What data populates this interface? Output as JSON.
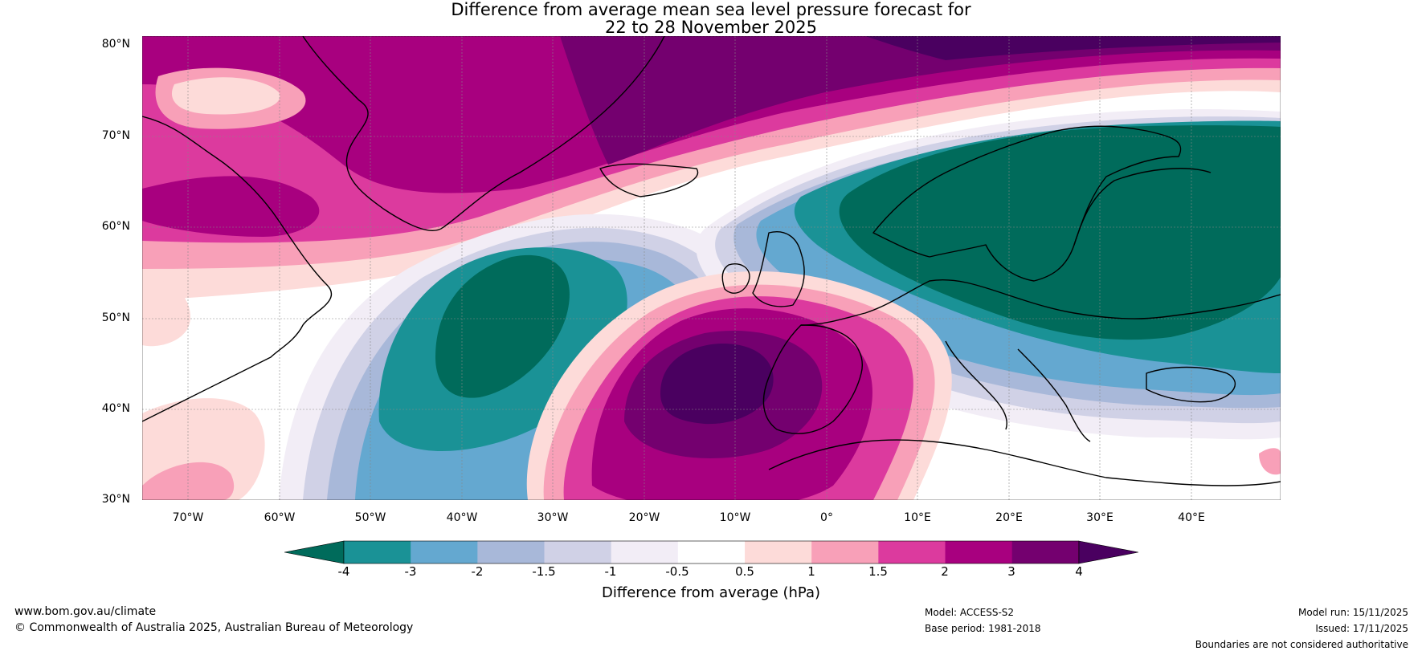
{
  "title": {
    "line1": "Difference from average mean sea level pressure forecast for",
    "line2": "22 to 28 November 2025"
  },
  "axes": {
    "lat_labels": [
      "80°N",
      "70°N",
      "60°N",
      "50°N",
      "40°N",
      "30°N"
    ],
    "lon_labels": [
      "70°W",
      "60°W",
      "50°W",
      "40°W",
      "30°W",
      "20°W",
      "10°W",
      "0°",
      "10°E",
      "20°E",
      "30°E",
      "40°E"
    ],
    "lat_range": [
      30,
      81
    ],
    "lon_range": [
      -75,
      50
    ]
  },
  "colorbar": {
    "title": "Difference from average (hPa)",
    "tick_labels": [
      "-4",
      "-3",
      "-2",
      "-1.5",
      "-1",
      "-0.5",
      "0.5",
      "1",
      "1.5",
      "2",
      "3",
      "4"
    ],
    "colors": [
      "#006b5b",
      "#1a9296",
      "#64a8d0",
      "#a8b8d9",
      "#d0d1e6",
      "#f2edf6",
      "#ffffff",
      "#fddbd9",
      "#f8a0b8",
      "#dc3a9e",
      "#a8007f",
      "#74006f",
      "#4a0060"
    ]
  },
  "footer": {
    "website": "www.bom.gov.au/climate",
    "copyright": "© Commonwealth of Australia 2025, Australian Bureau of Meteorology",
    "model": "Model: ACCESS-S2",
    "base_period": "Base period: 1981-2018",
    "model_run": "Model run: 15/11/2025",
    "issued": "Issued: 17/11/2025",
    "disclaimer": "Boundaries are not considered authoritative"
  },
  "colors": {
    "anomaly_strong_neg": "#006b5b",
    "anomaly_strong_pos": "#4a0060"
  }
}
